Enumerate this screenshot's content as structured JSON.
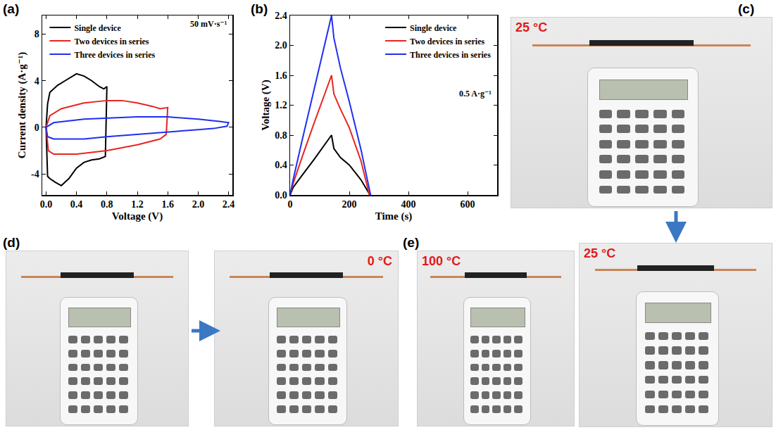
{
  "chart_data": [
    {
      "panel": "(a)",
      "type": "line",
      "xlabel": "Voltage (V)",
      "ylabel": "Current density (A·g⁻¹)",
      "annotation": "50 mV·s⁻¹",
      "xlim": [
        -0.05,
        2.45
      ],
      "xticks": [
        {
          "value": 0,
          "label": "0.0"
        },
        0.4,
        0.8,
        1.2,
        1.6,
        {
          "value": 2,
          "label": "2.0"
        },
        2.4
      ],
      "ylim": [
        -5.8,
        9.6
      ],
      "yticks": [
        -4,
        0,
        4,
        8
      ],
      "grid": false,
      "legend": "upper left",
      "series": [
        {
          "name": "Single device",
          "color": "#000000",
          "x": [
            0,
            0.02,
            0.05,
            0.1,
            0.15,
            0.25,
            0.4,
            0.5,
            0.6,
            0.7,
            0.76,
            0.8,
            0.79,
            0.78,
            0.7,
            0.6,
            0.5,
            0.4,
            0.3,
            0.2,
            0.12,
            0.05,
            0.02,
            0
          ],
          "values": [
            0,
            2.0,
            3.0,
            3.3,
            3.6,
            4.0,
            4.6,
            4.4,
            4.0,
            3.5,
            3.3,
            3.5,
            0.5,
            -2.5,
            -2.7,
            -2.8,
            -3.0,
            -3.5,
            -4.4,
            -5.0,
            -4.7,
            -4.4,
            -4.2,
            0
          ]
        },
        {
          "name": "Two devices in series",
          "color": "#e8251f",
          "x": [
            0,
            0.05,
            0.2,
            0.5,
            0.8,
            1.0,
            1.2,
            1.4,
            1.5,
            1.6,
            1.59,
            1.58,
            1.5,
            1.2,
            0.8,
            0.4,
            0.1,
            0.03,
            0
          ],
          "values": [
            0,
            1.0,
            1.6,
            2.1,
            2.3,
            2.3,
            2.1,
            1.8,
            1.6,
            1.7,
            0.5,
            -0.6,
            -1.0,
            -1.5,
            -2.0,
            -2.3,
            -2.3,
            -2.0,
            0
          ]
        },
        {
          "name": "Three devices in series",
          "color": "#1f2ff0",
          "x": [
            0,
            0.1,
            0.5,
            1.2,
            1.6,
            2.0,
            2.3,
            2.4,
            2.38,
            2.2,
            2.0,
            1.6,
            1.2,
            0.8,
            0.5,
            0.1,
            0.02,
            0
          ],
          "values": [
            0,
            0.4,
            0.7,
            0.9,
            0.9,
            0.7,
            0.5,
            0.4,
            0.1,
            -0.1,
            -0.2,
            -0.4,
            -0.6,
            -0.8,
            -1.0,
            -1.0,
            -0.8,
            0
          ]
        }
      ]
    },
    {
      "panel": "(b)",
      "type": "line",
      "xlabel": "Time (s)",
      "ylabel": "Voltage (V)",
      "annotation": "0.5 A·g⁻¹",
      "xlim": [
        0,
        700
      ],
      "xticks": [
        0,
        200,
        400,
        600
      ],
      "ylim": [
        0,
        2.4
      ],
      "yticks": [
        {
          "value": 0,
          "label": "0.0"
        },
        0.4,
        0.8,
        1.2,
        1.6,
        {
          "value": 2,
          "label": "2.0"
        },
        2.4
      ],
      "grid": false,
      "legend": "upper right",
      "series": [
        {
          "name": "Single device",
          "color": "#000000",
          "x": [
            0,
            10,
            40,
            80,
            140,
            148,
            170,
            200,
            240,
            270
          ],
          "values": [
            0,
            0.1,
            0.26,
            0.47,
            0.8,
            0.62,
            0.5,
            0.4,
            0.2,
            0
          ]
        },
        {
          "name": "Two devices in series",
          "color": "#e8251f",
          "x": [
            0,
            10,
            40,
            80,
            140,
            148,
            170,
            200,
            240,
            268
          ],
          "values": [
            0,
            0.15,
            0.5,
            0.95,
            1.6,
            1.35,
            1.15,
            0.9,
            0.45,
            0
          ]
        },
        {
          "name": "Three devices in series",
          "color": "#1f2ff0",
          "x": [
            0,
            10,
            40,
            80,
            140,
            148,
            170,
            200,
            240,
            272
          ],
          "values": [
            0,
            0.2,
            0.72,
            1.4,
            2.4,
            2.1,
            1.7,
            1.25,
            0.6,
            0
          ]
        }
      ]
    }
  ],
  "photos": [
    {
      "panel": "(c)",
      "images": [
        {
          "caption": "25 °C"
        },
        {
          "caption": "25 °C"
        }
      ]
    },
    {
      "panel": "(d)",
      "images": [
        {},
        {
          "caption": "0 °C"
        }
      ]
    },
    {
      "panel": "(e)",
      "images": [
        {
          "caption": "100 °C"
        }
      ]
    }
  ]
}
